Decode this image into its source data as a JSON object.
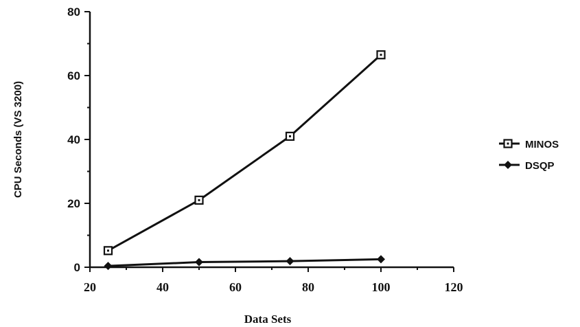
{
  "chart_data": {
    "type": "line",
    "title": "",
    "xlabel": "Data Sets",
    "ylabel": "CPU Seconds (VS 3200)",
    "xlim": [
      20,
      120
    ],
    "ylim": [
      0,
      80
    ],
    "x_ticks": [
      20,
      40,
      60,
      80,
      100,
      120
    ],
    "y_ticks": [
      0,
      20,
      40,
      60,
      80
    ],
    "x_tick_labels": [
      "20",
      "40",
      "60",
      "80",
      "100",
      "120"
    ],
    "y_tick_labels": [
      "0",
      "20",
      "40",
      "60",
      "80"
    ],
    "grid": false,
    "legend_position": "right",
    "series": [
      {
        "name": "MINOS",
        "marker": "open-square",
        "color": "#111111",
        "x": [
          25,
          50,
          75,
          100
        ],
        "y": [
          5.2,
          21,
          41,
          66.5
        ]
      },
      {
        "name": "DSQP",
        "marker": "filled-diamond",
        "color": "#111111",
        "x": [
          25,
          50,
          75,
          100
        ],
        "y": [
          0.4,
          1.6,
          1.9,
          2.5
        ]
      }
    ]
  }
}
